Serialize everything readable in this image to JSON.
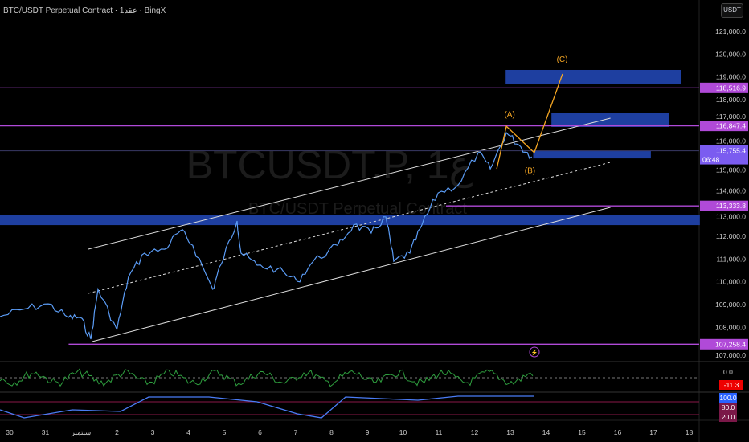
{
  "header": {
    "title": "BTC/USDT Perpetual Contract · 1عقد · BingX",
    "currency_button": "USDT"
  },
  "watermark": {
    "symbol": "BTCUSDT.P, 1ع",
    "name": "BTC/USDT Perpetual Contract"
  },
  "colors": {
    "price": "#5b9cf5",
    "level": "#b04ad8",
    "zone": "#1e3fa0",
    "wave": "#f5a623",
    "current": "#7b5cf0"
  },
  "chart_data": {
    "type": "line",
    "title": "BTC/USDT Perpetual Contract",
    "ylim": [
      106800,
      121800
    ],
    "y_ticks": [
      121000,
      120000,
      119000,
      118000,
      117000,
      116000,
      115000,
      114000,
      113000,
      112000,
      111000,
      110000,
      109000,
      108000,
      107000
    ],
    "y_tick_labels": [
      "121,000.0",
      "120,000.0",
      "119,000.0",
      "118,000.0",
      "117,000.0",
      "116,000.0",
      "115,000.0",
      "114,000.0",
      "113,000.0",
      "112,000.0",
      "111,000.0",
      "110,000.0",
      "109,000.0",
      "108,000.0",
      "107,000.0"
    ],
    "x_labels": [
      "30",
      "31",
      "سبتمبر",
      "2",
      "3",
      "4",
      "5",
      "6",
      "7",
      "8",
      "9",
      "10",
      "11",
      "12",
      "13",
      "14",
      "15",
      "16",
      "17",
      "18"
    ],
    "price_series": [
      [
        -0.27,
        108470
      ],
      [
        0.4,
        108800
      ],
      [
        1.08,
        109030
      ],
      [
        1.64,
        108430
      ],
      [
        1.98,
        108430
      ],
      [
        2.27,
        107480
      ],
      [
        2.47,
        109670
      ],
      [
        3.0,
        107900
      ],
      [
        3.32,
        110200
      ],
      [
        3.77,
        111260
      ],
      [
        4.33,
        111430
      ],
      [
        4.78,
        112250
      ],
      [
        5.12,
        111600
      ],
      [
        5.68,
        109670
      ],
      [
        5.9,
        110730
      ],
      [
        6.36,
        112670
      ],
      [
        6.47,
        111260
      ],
      [
        6.92,
        110730
      ],
      [
        7.48,
        110550
      ],
      [
        8.04,
        110020
      ],
      [
        8.49,
        110900
      ],
      [
        9.17,
        111600
      ],
      [
        9.62,
        112500
      ],
      [
        10.11,
        112140
      ],
      [
        10.52,
        112850
      ],
      [
        10.74,
        110900
      ],
      [
        11.19,
        111260
      ],
      [
        11.53,
        112500
      ],
      [
        11.98,
        113900
      ],
      [
        12.54,
        114250
      ],
      [
        13.1,
        115670
      ],
      [
        13.44,
        114960
      ],
      [
        13.89,
        116550
      ],
      [
        14.23,
        116020
      ],
      [
        14.6,
        115490
      ]
    ],
    "levels": [
      {
        "price": 118516.9,
        "label": "118,516.9",
        "from_day": -0.3
      },
      {
        "price": 116847.4,
        "label": "116,847.4",
        "from_day": -0.3
      },
      {
        "price": 113333.8,
        "label": "113,333.8",
        "from_day": 12.2
      },
      {
        "price": 107258.4,
        "label": "107,258.4",
        "from_day": 1.65
      }
    ],
    "current_price": {
      "label": "115,755.4",
      "countdown": "06:48",
      "price": 115755.4
    },
    "channel": [
      {
        "name": "upper",
        "from": [
          2.2,
          111434
        ],
        "to": [
          16.8,
          117188
        ],
        "dashed": false
      },
      {
        "name": "middle",
        "from": [
          2.2,
          109493
        ],
        "to": [
          16.8,
          115246
        ],
        "dashed": true
      },
      {
        "name": "lower",
        "from": [
          2.31,
          107375
        ],
        "to": [
          16.8,
          113270
        ],
        "dashed": false
      }
    ],
    "zones": [
      {
        "x": [
          13.87,
          18.78
        ],
        "y": [
          118670,
          119306
        ]
      },
      {
        "x": [
          15.15,
          18.43
        ],
        "y": [
          116800,
          117435
        ]
      },
      {
        "x": [
          14.64,
          17.93
        ],
        "y": [
          115420,
          115740
        ]
      },
      {
        "x": [
          -0.3,
          19.3
        ],
        "y": [
          112490,
          112920
        ]
      }
    ],
    "wave_path": [
      [
        13.62,
        114960
      ],
      [
        13.89,
        116830
      ],
      [
        14.67,
        115670
      ],
      [
        15.46,
        119130
      ]
    ],
    "wave_labels": [
      {
        "text": "(A)",
        "day": 13.98,
        "price": 117240
      },
      {
        "text": "(B)",
        "day": 14.55,
        "price": 114770
      },
      {
        "text": "(C)",
        "day": 15.45,
        "price": 119660
      }
    ],
    "oscillator1": {
      "zero_label": "0.0",
      "value_label": "-11.3"
    },
    "oscillator2": {
      "labels": [
        "100.0",
        "80.0",
        "20.0"
      ]
    }
  }
}
